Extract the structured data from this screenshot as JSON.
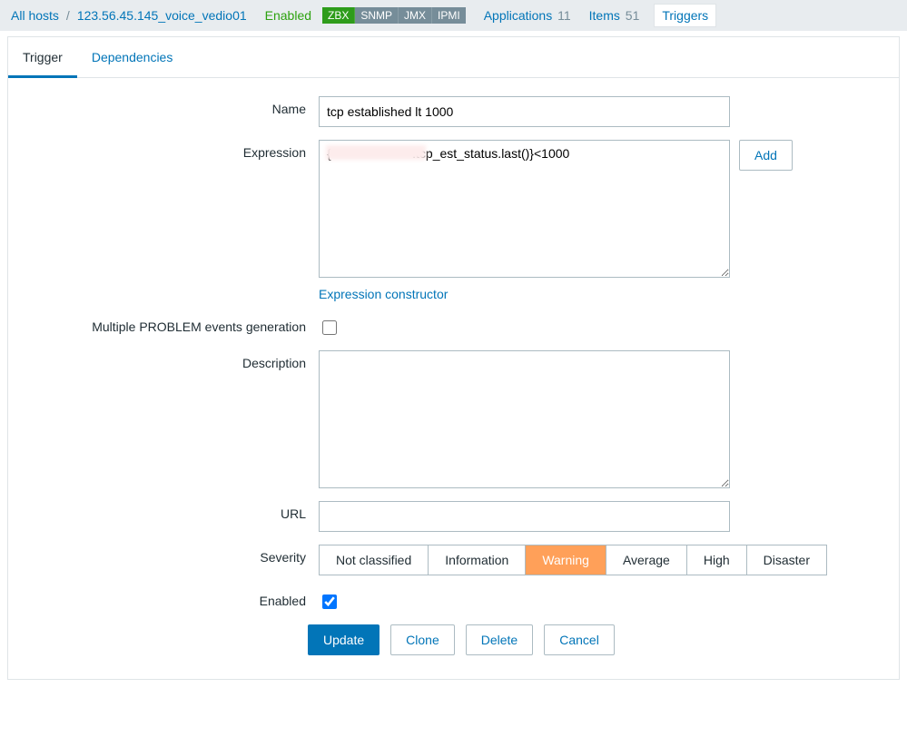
{
  "breadcrumb": {
    "all_hosts": "All hosts",
    "host": "123.56.45.145_voice_vedio01",
    "enabled": "Enabled"
  },
  "badges": [
    {
      "label": "ZBX",
      "bg": "#2e9c1b"
    },
    {
      "label": "SNMP",
      "bg": "#768d99"
    },
    {
      "label": "JMX",
      "bg": "#768d99"
    },
    {
      "label": "IPMI",
      "bg": "#768d99"
    }
  ],
  "nav": {
    "applications": {
      "label": "Applications",
      "count": "11"
    },
    "items": {
      "label": "Items",
      "count": "51"
    },
    "triggers": {
      "label": "Triggers"
    }
  },
  "tabs": {
    "trigger": "Trigger",
    "dependencies": "Dependencies"
  },
  "form": {
    "name_label": "Name",
    "name_value": "tcp established lt 1000",
    "expression_label": "Expression",
    "expression_value": "{                       .tcp_est_status.last()}<1000",
    "add_btn": "Add",
    "expression_constructor": "Expression constructor",
    "multiple_problem_label": "Multiple PROBLEM events generation",
    "multiple_problem_checked": false,
    "description_label": "Description",
    "description_value": "",
    "url_label": "URL",
    "url_value": "",
    "severity_label": "Severity",
    "severity_options": [
      "Not classified",
      "Information",
      "Warning",
      "Average",
      "High",
      "Disaster"
    ],
    "severity_selected": "Warning",
    "severity_selected_bg": "#ffa059",
    "enabled_label": "Enabled",
    "enabled_checked": true
  },
  "actions": {
    "update": "Update",
    "clone": "Clone",
    "delete": "Delete",
    "cancel": "Cancel"
  }
}
